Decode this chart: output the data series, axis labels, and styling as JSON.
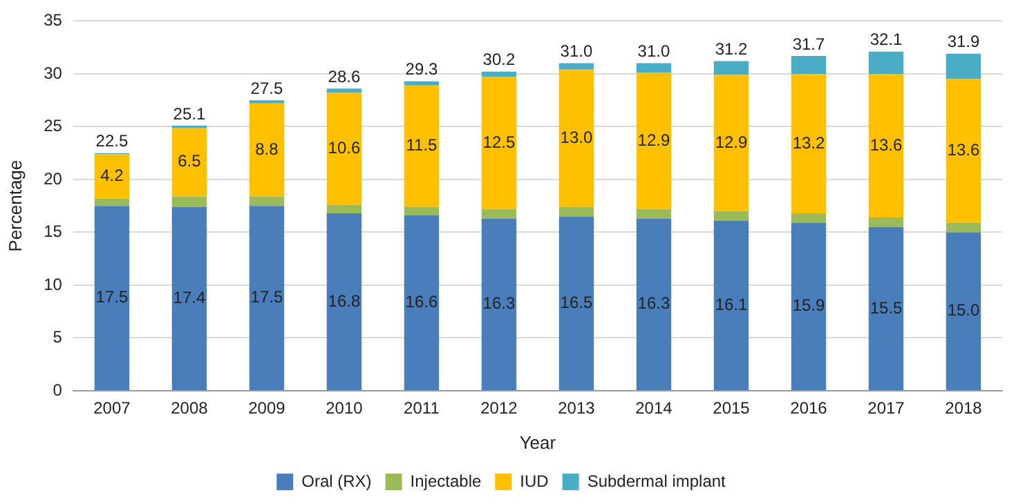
{
  "chart_data": {
    "type": "bar",
    "stacked": true,
    "xlabel": "Year",
    "ylabel": "Percentage",
    "categories": [
      "2007",
      "2008",
      "2009",
      "2010",
      "2011",
      "2012",
      "2013",
      "2014",
      "2015",
      "2016",
      "2017",
      "2018"
    ],
    "series": [
      {
        "name": "Oral (RX)",
        "color": "#4a7ebb",
        "values": [
          17.5,
          17.4,
          17.5,
          16.8,
          16.6,
          16.3,
          16.5,
          16.3,
          16.1,
          15.9,
          15.5,
          15.0
        ],
        "value_labels": [
          "17.5",
          "17.4",
          "17.5",
          "16.8",
          "16.6",
          "16.3",
          "16.5",
          "16.3",
          "16.1",
          "15.9",
          "15.5",
          "15.0"
        ]
      },
      {
        "name": "Injectable",
        "color": "#9bbb59",
        "values": [
          0.7,
          1.0,
          0.9,
          0.8,
          0.8,
          0.9,
          0.9,
          0.9,
          0.9,
          0.9,
          0.9,
          0.9
        ]
      },
      {
        "name": "IUD",
        "color": "#ffc000",
        "values": [
          4.2,
          6.5,
          8.8,
          10.6,
          11.5,
          12.5,
          13.0,
          12.9,
          12.9,
          13.2,
          13.6,
          13.6
        ],
        "value_labels": [
          "4.2",
          "6.5",
          "8.8",
          "10.6",
          "11.5",
          "12.5",
          "13.0",
          "12.9",
          "12.9",
          "13.2",
          "13.6",
          "13.6"
        ]
      },
      {
        "name": "Subdermal implant",
        "color": "#4bacc6",
        "values": [
          0.1,
          0.2,
          0.3,
          0.4,
          0.4,
          0.5,
          0.6,
          0.9,
          1.3,
          1.7,
          2.1,
          2.4
        ]
      }
    ],
    "totals": [
      "22.5",
      "25.1",
      "27.5",
      "28.6",
      "29.3",
      "30.2",
      "31.0",
      "31.0",
      "31.2",
      "31.7",
      "32.1",
      "31.9"
    ],
    "ylim": [
      0,
      35
    ],
    "yticks": [
      0,
      5,
      10,
      15,
      20,
      25,
      30,
      35
    ],
    "grid": "y",
    "legend": "bottom"
  }
}
